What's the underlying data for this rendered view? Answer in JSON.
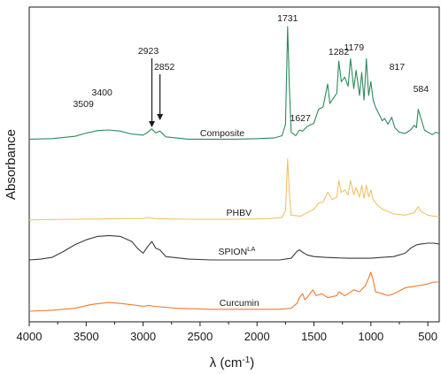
{
  "chart_data": {
    "type": "line",
    "title": "",
    "xlabel": {
      "base": "λ (cm",
      "sup": "-1",
      "close": ")"
    },
    "ylabel": "Absorbance",
    "xlim": [
      4000,
      400
    ],
    "x_reversed": true,
    "x_ticks": [
      4000,
      3500,
      3000,
      2500,
      2000,
      1500,
      1000,
      500
    ],
    "y_ticks_shown": false,
    "grid": false,
    "legend": "none",
    "series": [
      {
        "name": "Composite",
        "name_sup": "",
        "color": "#2e8a5a",
        "offset": 0.58,
        "points": [
          [
            4000,
            0.02
          ],
          [
            3800,
            0.025
          ],
          [
            3600,
            0.045
          ],
          [
            3509,
            0.07
          ],
          [
            3400,
            0.095
          ],
          [
            3300,
            0.1
          ],
          [
            3200,
            0.09
          ],
          [
            3100,
            0.065
          ],
          [
            3000,
            0.055
          ],
          [
            2960,
            0.08
          ],
          [
            2923,
            0.11
          ],
          [
            2890,
            0.075
          ],
          [
            2852,
            0.09
          ],
          [
            2800,
            0.04
          ],
          [
            2600,
            0.02
          ],
          [
            2400,
            0.02
          ],
          [
            2200,
            0.02
          ],
          [
            2000,
            0.025
          ],
          [
            1850,
            0.03
          ],
          [
            1780,
            0.05
          ],
          [
            1750,
            0.15
          ],
          [
            1731,
            1.0
          ],
          [
            1715,
            0.45
          ],
          [
            1700,
            0.08
          ],
          [
            1660,
            0.05
          ],
          [
            1627,
            0.1
          ],
          [
            1600,
            0.09
          ],
          [
            1560,
            0.13
          ],
          [
            1500,
            0.16
          ],
          [
            1460,
            0.28
          ],
          [
            1420,
            0.3
          ],
          [
            1380,
            0.5
          ],
          [
            1360,
            0.33
          ],
          [
            1300,
            0.42
          ],
          [
            1282,
            0.7
          ],
          [
            1260,
            0.52
          ],
          [
            1230,
            0.56
          ],
          [
            1200,
            0.48
          ],
          [
            1179,
            0.72
          ],
          [
            1150,
            0.46
          ],
          [
            1130,
            0.62
          ],
          [
            1100,
            0.4
          ],
          [
            1080,
            0.6
          ],
          [
            1060,
            0.36
          ],
          [
            1040,
            0.72
          ],
          [
            1020,
            0.4
          ],
          [
            1000,
            0.52
          ],
          [
            980,
            0.36
          ],
          [
            960,
            0.3
          ],
          [
            940,
            0.26
          ],
          [
            900,
            0.18
          ],
          [
            880,
            0.2
          ],
          [
            850,
            0.15
          ],
          [
            817,
            0.21
          ],
          [
            790,
            0.12
          ],
          [
            750,
            0.08
          ],
          [
            700,
            0.07
          ],
          [
            650,
            0.1
          ],
          [
            620,
            0.14
          ],
          [
            600,
            0.12
          ],
          [
            584,
            0.28
          ],
          [
            560,
            0.2
          ],
          [
            530,
            0.1
          ],
          [
            500,
            0.08
          ],
          [
            460,
            0.06
          ],
          [
            430,
            0.08
          ],
          [
            400,
            0.07
          ]
        ]
      },
      {
        "name": "PHBV",
        "name_sup": "",
        "color": "#f3c266",
        "offset": 0.39,
        "points": [
          [
            4000,
            0.01
          ],
          [
            3600,
            0.015
          ],
          [
            3200,
            0.02
          ],
          [
            3000,
            0.02
          ],
          [
            2960,
            0.03
          ],
          [
            2900,
            0.02
          ],
          [
            2600,
            0.015
          ],
          [
            2200,
            0.015
          ],
          [
            1900,
            0.02
          ],
          [
            1780,
            0.03
          ],
          [
            1750,
            0.09
          ],
          [
            1731,
            0.52
          ],
          [
            1715,
            0.22
          ],
          [
            1700,
            0.05
          ],
          [
            1620,
            0.04
          ],
          [
            1560,
            0.07
          ],
          [
            1500,
            0.1
          ],
          [
            1460,
            0.15
          ],
          [
            1420,
            0.16
          ],
          [
            1380,
            0.24
          ],
          [
            1340,
            0.18
          ],
          [
            1300,
            0.2
          ],
          [
            1282,
            0.34
          ],
          [
            1260,
            0.24
          ],
          [
            1230,
            0.26
          ],
          [
            1200,
            0.22
          ],
          [
            1179,
            0.34
          ],
          [
            1150,
            0.22
          ],
          [
            1130,
            0.28
          ],
          [
            1100,
            0.2
          ],
          [
            1080,
            0.3
          ],
          [
            1060,
            0.19
          ],
          [
            1040,
            0.3
          ],
          [
            1020,
            0.2
          ],
          [
            1000,
            0.26
          ],
          [
            980,
            0.18
          ],
          [
            950,
            0.14
          ],
          [
            900,
            0.1
          ],
          [
            850,
            0.08
          ],
          [
            800,
            0.06
          ],
          [
            700,
            0.05
          ],
          [
            620,
            0.07
          ],
          [
            584,
            0.12
          ],
          [
            560,
            0.08
          ],
          [
            500,
            0.05
          ],
          [
            450,
            0.04
          ],
          [
            400,
            0.04
          ]
        ]
      },
      {
        "name": "SPION",
        "name_sup": "LA",
        "color": "#3a3a3a",
        "offset": 0.22,
        "points": [
          [
            4000,
            0.0
          ],
          [
            3900,
            0.005
          ],
          [
            3800,
            0.015
          ],
          [
            3700,
            0.05
          ],
          [
            3600,
            0.09
          ],
          [
            3500,
            0.12
          ],
          [
            3400,
            0.14
          ],
          [
            3300,
            0.145
          ],
          [
            3200,
            0.14
          ],
          [
            3100,
            0.11
          ],
          [
            3050,
            0.07
          ],
          [
            3000,
            0.04
          ],
          [
            2960,
            0.08
          ],
          [
            2923,
            0.11
          ],
          [
            2890,
            0.07
          ],
          [
            2852,
            0.06
          ],
          [
            2800,
            0.02
          ],
          [
            2600,
            0.005
          ],
          [
            2400,
            0.0
          ],
          [
            2200,
            0.0
          ],
          [
            2000,
            0.0
          ],
          [
            1800,
            0.0
          ],
          [
            1700,
            0.01
          ],
          [
            1650,
            0.05
          ],
          [
            1627,
            0.06
          ],
          [
            1600,
            0.045
          ],
          [
            1560,
            0.03
          ],
          [
            1500,
            0.02
          ],
          [
            1400,
            0.015
          ],
          [
            1200,
            0.01
          ],
          [
            1000,
            0.01
          ],
          [
            900,
            0.015
          ],
          [
            800,
            0.02
          ],
          [
            700,
            0.04
          ],
          [
            650,
            0.07
          ],
          [
            600,
            0.09
          ],
          [
            560,
            0.095
          ],
          [
            500,
            0.1
          ],
          [
            450,
            0.1
          ],
          [
            400,
            0.095
          ]
        ]
      },
      {
        "name": "Curcumin",
        "name_sup": "",
        "color": "#f07a2e",
        "offset": 0.0,
        "points": [
          [
            4000,
            0.0
          ],
          [
            3800,
            0.005
          ],
          [
            3600,
            0.015
          ],
          [
            3450,
            0.035
          ],
          [
            3300,
            0.045
          ],
          [
            3200,
            0.04
          ],
          [
            3050,
            0.03
          ],
          [
            3000,
            0.025
          ],
          [
            2950,
            0.03
          ],
          [
            2900,
            0.025
          ],
          [
            2700,
            0.015
          ],
          [
            2400,
            0.01
          ],
          [
            2200,
            0.01
          ],
          [
            2000,
            0.01
          ],
          [
            1800,
            0.01
          ],
          [
            1700,
            0.015
          ],
          [
            1650,
            0.04
          ],
          [
            1627,
            0.07
          ],
          [
            1600,
            0.09
          ],
          [
            1580,
            0.06
          ],
          [
            1560,
            0.07
          ],
          [
            1510,
            0.11
          ],
          [
            1480,
            0.08
          ],
          [
            1430,
            0.09
          ],
          [
            1380,
            0.07
          ],
          [
            1300,
            0.08
          ],
          [
            1280,
            0.1
          ],
          [
            1230,
            0.08
          ],
          [
            1200,
            0.09
          ],
          [
            1150,
            0.11
          ],
          [
            1100,
            0.1
          ],
          [
            1050,
            0.13
          ],
          [
            1020,
            0.17
          ],
          [
            1000,
            0.2
          ],
          [
            980,
            0.16
          ],
          [
            960,
            0.1
          ],
          [
            900,
            0.09
          ],
          [
            850,
            0.08
          ],
          [
            800,
            0.09
          ],
          [
            700,
            0.12
          ],
          [
            600,
            0.13
          ],
          [
            500,
            0.14
          ],
          [
            450,
            0.15
          ],
          [
            400,
            0.15
          ]
        ]
      }
    ],
    "peak_annotations": [
      {
        "label": "1731",
        "x": 1731
      },
      {
        "label": "1627",
        "x": 1627
      },
      {
        "label": "1282",
        "x": 1282
      },
      {
        "label": "1179",
        "x": 1179
      },
      {
        "label": "817",
        "x": 817
      },
      {
        "label": "584",
        "x": 584
      },
      {
        "label": "3509",
        "x": 3509
      },
      {
        "label": "3400",
        "x": 3400
      },
      {
        "label": "2923",
        "x": 2923,
        "arrow": true
      },
      {
        "label": "2852",
        "x": 2852,
        "arrow": true
      }
    ]
  }
}
